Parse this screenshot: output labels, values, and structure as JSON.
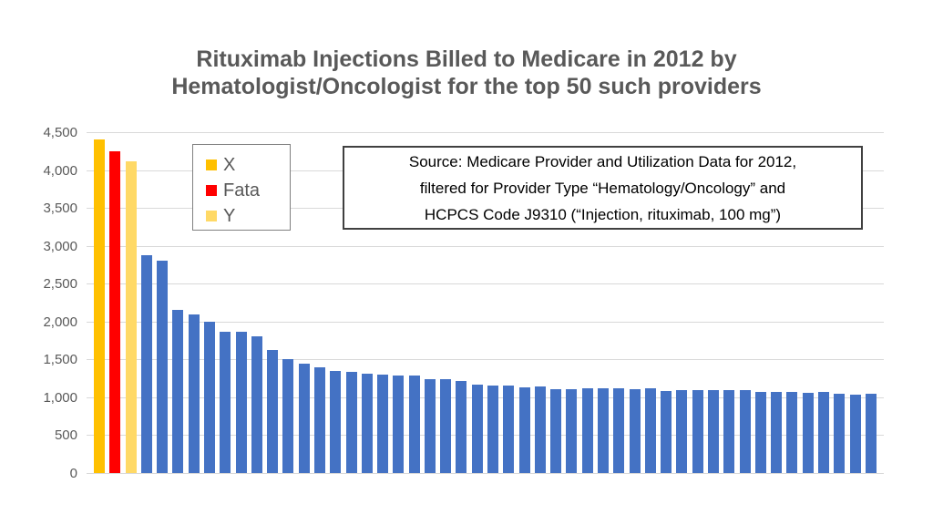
{
  "title_lines": [
    "Rituximab Injections Billed to Medicare in 2012 by",
    "Hematologist/Oncologist for the top 50 such providers"
  ],
  "source_box": {
    "lines": [
      "Source:  Medicare Provider and Utilization Data for 2012,",
      "filtered for Provider Type “Hematology/Oncology” and",
      "HCPCS Code J9310 (“Injection, rituximab, 100 mg”)"
    ]
  },
  "chart_data": {
    "type": "bar",
    "title": "Rituximab Injections Billed to Medicare in 2012 by Hematologist/Oncologist for the top 50 such providers",
    "xlabel": "",
    "ylabel": "",
    "x_description": "Top 50 providers, unlabeled, sorted descending",
    "values": [
      4400,
      4250,
      4120,
      2870,
      2800,
      2150,
      2090,
      2000,
      1870,
      1860,
      1810,
      1620,
      1500,
      1450,
      1390,
      1350,
      1330,
      1310,
      1295,
      1290,
      1290,
      1245,
      1240,
      1210,
      1165,
      1160,
      1155,
      1135,
      1140,
      1110,
      1110,
      1115,
      1120,
      1115,
      1110,
      1120,
      1085,
      1090,
      1100,
      1090,
      1090,
      1100,
      1070,
      1070,
      1070,
      1065,
      1070,
      1050,
      1040,
      1050
    ],
    "highlight_colors": [
      "#FFC000",
      "#FF0000",
      "#FFD966"
    ],
    "default_bar_color": "#4472C4",
    "ylim": [
      0,
      4500
    ],
    "ytick_step": 500,
    "ytick_labels_top_to_bottom": [
      "4,500",
      "4,000",
      "3,500",
      "3,000",
      "2,500",
      "2,000",
      "1,500",
      "1,000",
      "500",
      "0"
    ],
    "grid": true,
    "gridline_color": "#d9d9d9",
    "legend_position": "inside-top-left",
    "legend": [
      {
        "label": "X",
        "color": "#FFC000"
      },
      {
        "label": "Fata",
        "color": "#FF0000"
      },
      {
        "label": "Y",
        "color": "#FFD966"
      }
    ]
  }
}
